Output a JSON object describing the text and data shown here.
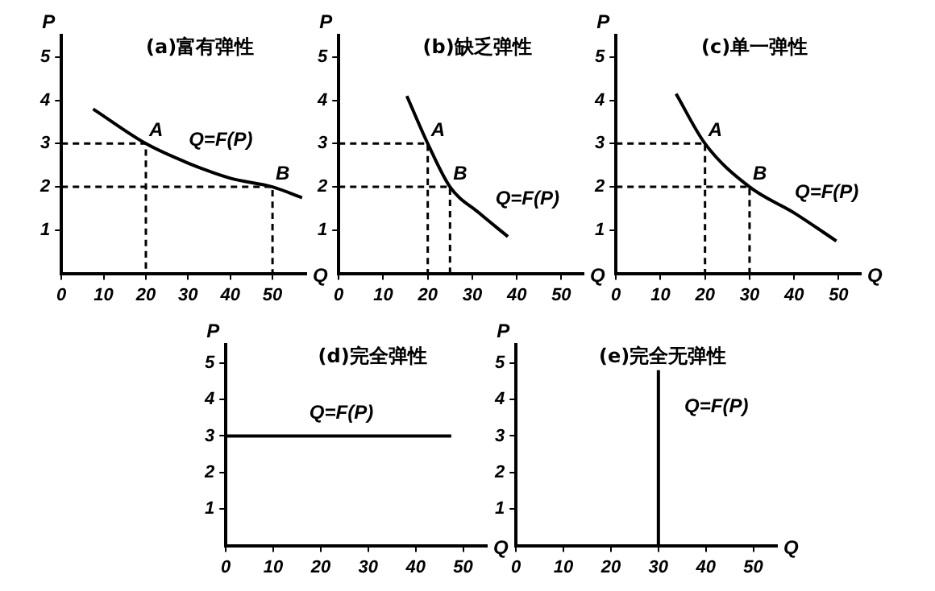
{
  "chart_data": [
    {
      "type": "line",
      "title": "(a)富有弹性",
      "xlabel": "Q",
      "ylabel": "P",
      "xlim": [
        0,
        58
      ],
      "ylim": [
        0,
        5.5
      ],
      "xticks": [
        0,
        10,
        20,
        30,
        40,
        50
      ],
      "yticks": [
        1,
        2,
        3,
        4,
        5
      ],
      "grid": false,
      "legend": false,
      "marker": "none",
      "series": [
        {
          "color": "#000000",
          "x": [
            7.5,
            20,
            30,
            40,
            50,
            57
          ],
          "values": [
            3.8,
            3,
            2.55,
            2.2,
            2,
            1.75
          ]
        },
        {
          "color": "#000000",
          "line_style": "dashed",
          "x": [
            0,
            20,
            20
          ],
          "values": [
            3,
            3,
            0
          ]
        },
        {
          "color": "#000000",
          "line_style": "dashed",
          "x": [
            0,
            50,
            50
          ],
          "values": [
            2,
            2,
            0
          ]
        }
      ],
      "annotations": [
        {
          "text": "A",
          "x": 20,
          "y": 3
        },
        {
          "text": "B",
          "x": 50,
          "y": 2
        },
        "Q=F(P)"
      ]
    },
    {
      "type": "line",
      "title": "(b)缺乏弹性",
      "xlabel": "Q",
      "ylabel": "P",
      "xlim": [
        0,
        55
      ],
      "ylim": [
        0,
        5.5
      ],
      "xticks": [
        0,
        10,
        20,
        30,
        40,
        50
      ],
      "yticks": [
        1,
        2,
        3,
        4,
        5
      ],
      "grid": false,
      "legend": false,
      "marker": "none",
      "series": [
        {
          "color": "#000000",
          "x": [
            15.3,
            20,
            25,
            31.5,
            38
          ],
          "values": [
            4.1,
            3,
            2,
            1.4,
            0.85
          ]
        },
        {
          "color": "#000000",
          "line_style": "dashed",
          "x": [
            0,
            20,
            20
          ],
          "values": [
            3,
            3,
            0
          ]
        },
        {
          "color": "#000000",
          "line_style": "dashed",
          "x": [
            0,
            25,
            25
          ],
          "values": [
            2,
            2,
            0
          ]
        }
      ],
      "annotations": [
        {
          "text": "A",
          "x": 20,
          "y": 3
        },
        {
          "text": "B",
          "x": 25,
          "y": 2
        },
        "Q=F(P)"
      ]
    },
    {
      "type": "line",
      "title": "(c)单一弹性",
      "xlabel": "Q",
      "ylabel": "P",
      "xlim": [
        0,
        55
      ],
      "ylim": [
        0,
        5.5
      ],
      "xticks": [
        0,
        10,
        20,
        30,
        40,
        50
      ],
      "yticks": [
        1,
        2,
        3,
        4,
        5
      ],
      "grid": false,
      "legend": false,
      "marker": "none",
      "series": [
        {
          "color": "#000000",
          "x": [
            13.5,
            20,
            30,
            40,
            49.5
          ],
          "values": [
            4.15,
            3,
            2,
            1.4,
            0.75
          ]
        },
        {
          "color": "#000000",
          "line_style": "dashed",
          "x": [
            0,
            20,
            20
          ],
          "values": [
            3,
            3,
            0
          ]
        },
        {
          "color": "#000000",
          "line_style": "dashed",
          "x": [
            0,
            30,
            30
          ],
          "values": [
            2,
            2,
            0
          ]
        }
      ],
      "annotations": [
        {
          "text": "A",
          "x": 20,
          "y": 3
        },
        {
          "text": "B",
          "x": 30,
          "y": 2
        },
        "Q=F(P)"
      ]
    },
    {
      "type": "line",
      "title": "(d)完全弹性",
      "xlabel": "Q",
      "ylabel": "P",
      "xlim": [
        0,
        55
      ],
      "ylim": [
        0,
        5.5
      ],
      "xticks": [
        0,
        10,
        20,
        30,
        40,
        50
      ],
      "yticks": [
        1,
        2,
        3,
        4,
        5
      ],
      "grid": false,
      "legend": false,
      "marker": "none",
      "series": [
        {
          "color": "#000000",
          "x": [
            0,
            47.5
          ],
          "values": [
            3,
            3
          ]
        }
      ],
      "annotations": [
        "Q=F(P)"
      ]
    },
    {
      "type": "line",
      "title": "(e)完全无弹性",
      "xlabel": "Q",
      "ylabel": "P",
      "xlim": [
        0,
        55
      ],
      "ylim": [
        0,
        5.5
      ],
      "xticks": [
        0,
        10,
        20,
        30,
        40,
        50
      ],
      "yticks": [
        1,
        2,
        3,
        4,
        5
      ],
      "grid": false,
      "legend": false,
      "marker": "none",
      "series": [
        {
          "color": "#000000",
          "x": [
            30,
            30
          ],
          "values": [
            0,
            4.8
          ]
        }
      ],
      "annotations": [
        "Q=F(P)"
      ]
    }
  ]
}
